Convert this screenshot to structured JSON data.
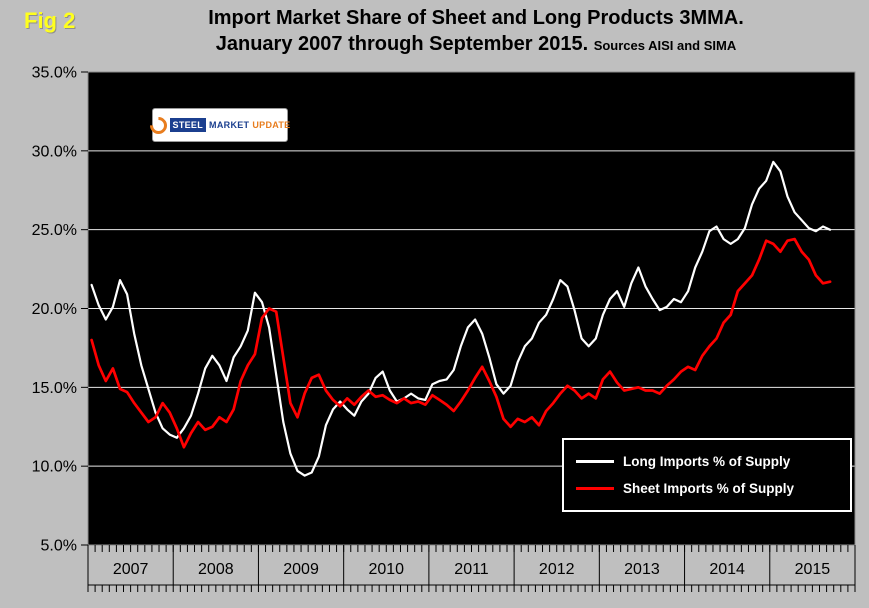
{
  "fig_label": "Fig 2",
  "title": {
    "line1": "Import Market Share of Sheet and Long Products 3MMA.",
    "line2": "January 2007 through September 2015.",
    "sources": "Sources AISI and SIMA"
  },
  "logo": {
    "steel": "STEEL",
    "market": "MARKET",
    "update": "UPDATE"
  },
  "chart_data": {
    "type": "line",
    "title": "Import Market Share of Sheet and Long Products 3MMA. January 2007 through September 2015.",
    "sources": "AISI and SIMA",
    "categories": [
      "2007",
      "2008",
      "2009",
      "2010",
      "2011",
      "2012",
      "2013",
      "2014",
      "2015"
    ],
    "x_start": "2007-01",
    "x_end": "2015-09",
    "x_span_months": 108,
    "ylim": [
      5,
      35
    ],
    "ytick_values": [
      35,
      30,
      25,
      20,
      15,
      10,
      5
    ],
    "ytick_labels": [
      "35.0%",
      "30.0%",
      "25.0%",
      "20.0%",
      "15.0%",
      "10.0%",
      "5.0%"
    ],
    "grid": true,
    "plot_bg": "#000000",
    "page_bg": "#bfbfbf",
    "grid_color": "#e8e8e8",
    "legend_position": "inside-bottom-right",
    "series": [
      {
        "name": "Long Imports % of Supply",
        "color": "#ffffff",
        "values": [
          21.5,
          20.2,
          19.3,
          20.1,
          21.8,
          20.9,
          18.4,
          16.4,
          14.9,
          13.4,
          12.4,
          12.0,
          11.8,
          12.4,
          13.2,
          14.6,
          16.2,
          17.0,
          16.4,
          15.4,
          16.9,
          17.6,
          18.6,
          21.0,
          20.4,
          18.8,
          15.8,
          12.8,
          10.8,
          9.7,
          9.4,
          9.6,
          10.6,
          12.6,
          13.6,
          14.1,
          13.6,
          13.2,
          14.1,
          14.6,
          15.6,
          16.0,
          14.8,
          14.1,
          14.3,
          14.6,
          14.3,
          14.2,
          15.2,
          15.4,
          15.5,
          16.1,
          17.6,
          18.8,
          19.3,
          18.4,
          16.9,
          15.2,
          14.6,
          15.1,
          16.6,
          17.6,
          18.1,
          19.1,
          19.6,
          20.6,
          21.8,
          21.4,
          19.9,
          18.1,
          17.6,
          18.1,
          19.6,
          20.6,
          21.1,
          20.1,
          21.6,
          22.6,
          21.4,
          20.6,
          19.9,
          20.1,
          20.6,
          20.4,
          21.1,
          22.6,
          23.6,
          24.9,
          25.2,
          24.4,
          24.1,
          24.4,
          25.1,
          26.6,
          27.6,
          28.1,
          29.3,
          28.7,
          27.1,
          26.1,
          25.6,
          25.1,
          24.9,
          25.2,
          25.0
        ]
      },
      {
        "name": "Sheet Imports % of Supply",
        "color": "#ff0000",
        "values": [
          18.0,
          16.4,
          15.4,
          16.2,
          14.9,
          14.7,
          14.0,
          13.4,
          12.8,
          13.1,
          14.0,
          13.4,
          12.4,
          11.2,
          12.1,
          12.8,
          12.3,
          12.5,
          13.1,
          12.8,
          13.6,
          15.4,
          16.4,
          17.1,
          19.4,
          20.0,
          19.8,
          16.9,
          14.0,
          13.1,
          14.6,
          15.6,
          15.8,
          14.8,
          14.2,
          13.8,
          14.3,
          13.9,
          14.4,
          14.8,
          14.4,
          14.5,
          14.2,
          14.0,
          14.3,
          14.0,
          14.1,
          13.9,
          14.5,
          14.2,
          13.9,
          13.5,
          14.1,
          14.8,
          15.6,
          16.3,
          15.4,
          14.4,
          13.0,
          12.5,
          13.0,
          12.8,
          13.1,
          12.6,
          13.5,
          14.0,
          14.6,
          15.1,
          14.8,
          14.3,
          14.6,
          14.3,
          15.5,
          16.0,
          15.3,
          14.8,
          14.9,
          15.0,
          14.8,
          14.8,
          14.6,
          15.1,
          15.5,
          16.0,
          16.3,
          16.1,
          17.0,
          17.6,
          18.1,
          19.1,
          19.6,
          21.1,
          21.6,
          22.1,
          23.1,
          24.3,
          24.1,
          23.6,
          24.3,
          24.4,
          23.6,
          23.1,
          22.1,
          21.6,
          21.7
        ]
      }
    ]
  }
}
